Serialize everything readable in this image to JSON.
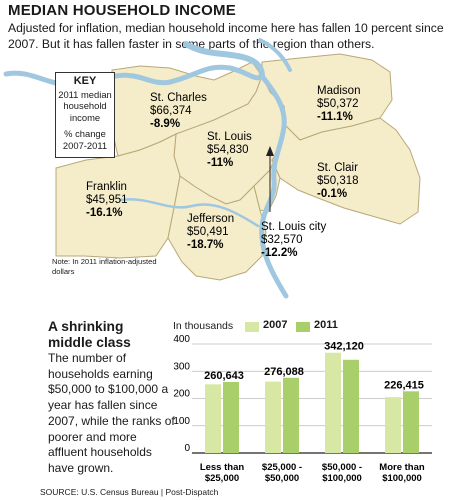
{
  "header": {
    "title": "MEDIAN HOUSEHOLD INCOME",
    "intro": "Adjusted for inflation, median household income here has fallen 10 percent since 2007. But it has fallen faster in some parts of the region than others."
  },
  "key": {
    "title": "KEY",
    "line1": "2011 median household income",
    "line2": "% change 2007-2011"
  },
  "map": {
    "colors": {
      "land": "#f5ecc9",
      "river": "#9fc7e0",
      "border": "#b8a878"
    },
    "counties": [
      {
        "name": "St. Charles",
        "value": "$66,374",
        "change": "-8.9%"
      },
      {
        "name": "Madison",
        "value": "$50,372",
        "change": "-11.1%"
      },
      {
        "name": "St. Louis",
        "value": "$54,830",
        "change": "-11%"
      },
      {
        "name": "St. Clair",
        "value": "$50,318",
        "change": "-0.1%"
      },
      {
        "name": "Franklin",
        "value": "$45,951",
        "change": "-16.1%"
      },
      {
        "name": "Jefferson",
        "value": "$50,491",
        "change": "-18.7%"
      },
      {
        "name": "St. Louis city",
        "value": "$32,570",
        "change": "-12.2%"
      }
    ],
    "note": "Note: In 2011 inflation-adjusted dollars"
  },
  "section2": {
    "title": "A shrinking middle class",
    "text": "The number of households earning $50,000 to $100,000 a year has fallen since 2007, while the ranks of poorer and more affluent households have grown."
  },
  "source": "SOURCE: U.S. Census Bureau | Post-Dispatch",
  "chart_data": {
    "type": "bar",
    "unit_label": "In thousands",
    "categories": [
      "Less than $25,000",
      "$25,000 - $50,000",
      "$50,000 - $100,000",
      "More than $100,000"
    ],
    "series": [
      {
        "name": "2007",
        "values": [
          252,
          262,
          368,
          205
        ],
        "color": "#d6e8a4"
      },
      {
        "name": "2011",
        "values": [
          260.643,
          276.088,
          342.12,
          226.415
        ],
        "color": "#a9cf6b"
      }
    ],
    "data_labels": [
      "260,643",
      "276,088",
      "342,120",
      "226,415"
    ],
    "yticks": [
      "0",
      "100",
      "200",
      "300",
      "400"
    ],
    "ylim": [
      0,
      400
    ],
    "grid": true,
    "legend": "top"
  }
}
